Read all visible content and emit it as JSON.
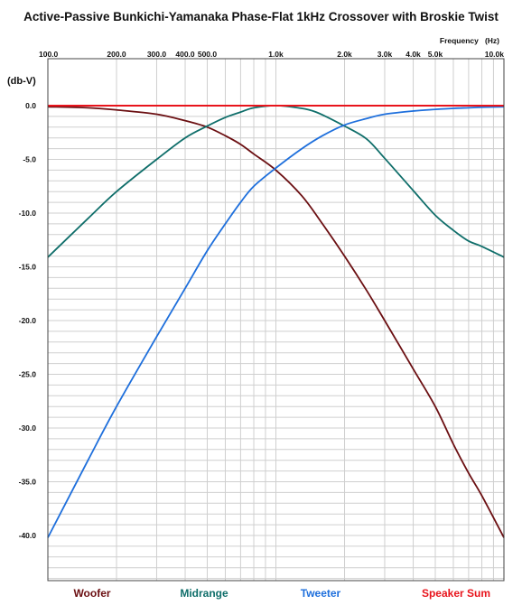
{
  "chart_data": {
    "type": "line",
    "title": "Active-Passive Bunkichi-Yamanaka Phase-Flat 1kHz Crossover with Broskie Twist",
    "xlabel": "Frequency   (Hz)",
    "ylabel": "(db-V)",
    "x_scale": "log",
    "xlim": [
      100,
      10000
    ],
    "ylim": [
      -44,
      2
    ],
    "grid": true,
    "legend_position": "bottom",
    "x_ticks": [
      {
        "value": 100,
        "label": "100.0"
      },
      {
        "value": 200,
        "label": "200.0"
      },
      {
        "value": 300,
        "label": "300.0"
      },
      {
        "value": 400,
        "label": "400.0"
      },
      {
        "value": 500,
        "label": "500.0"
      },
      {
        "value": 1000,
        "label": "1.0k"
      },
      {
        "value": 2000,
        "label": "2.0k"
      },
      {
        "value": 3000,
        "label": "3.0k"
      },
      {
        "value": 4000,
        "label": "4.0k"
      },
      {
        "value": 5000,
        "label": "5.0k"
      },
      {
        "value": 10000,
        "label": "10.0k"
      }
    ],
    "y_ticks": [
      {
        "value": 0,
        "label": "0.0"
      },
      {
        "value": -5,
        "label": "-5.0"
      },
      {
        "value": -10,
        "label": "-10.0"
      },
      {
        "value": -15,
        "label": "-15.0"
      },
      {
        "value": -20,
        "label": "-20.0"
      },
      {
        "value": -25,
        "label": "-25.0"
      },
      {
        "value": -30,
        "label": "-30.0"
      },
      {
        "value": -35,
        "label": "-35.0"
      },
      {
        "value": -40,
        "label": "-40.0"
      }
    ],
    "series": [
      {
        "name": "Woofer",
        "color": "#6b0f12",
        "x": [
          100,
          150,
          200,
          300,
          400,
          500,
          600,
          700,
          800,
          1000,
          1300,
          1600,
          2000,
          2500,
          3000,
          4000,
          5000,
          6000,
          7000,
          8000,
          10000
        ],
        "y": [
          -0.1,
          -0.2,
          -0.4,
          -0.8,
          -1.4,
          -2.0,
          -2.8,
          -3.6,
          -4.5,
          -6.0,
          -8.4,
          -11.0,
          -14.0,
          -17.2,
          -20.0,
          -24.5,
          -28.0,
          -31.5,
          -34.2,
          -36.3,
          -40.2
        ]
      },
      {
        "name": "Midrange",
        "color": "#0f6e6a",
        "x": [
          100,
          150,
          200,
          300,
          400,
          500,
          600,
          700,
          800,
          1000,
          1250,
          1500,
          2000,
          2500,
          3000,
          4000,
          5000,
          6000,
          7000,
          8000,
          10000
        ],
        "y": [
          -14.1,
          -10.5,
          -8.0,
          -5.0,
          -3.0,
          -1.9,
          -1.1,
          -0.6,
          -0.2,
          0.0,
          -0.2,
          -0.6,
          -1.9,
          -3.1,
          -4.9,
          -7.9,
          -10.2,
          -11.6,
          -12.6,
          -13.1,
          -14.1
        ]
      },
      {
        "name": "Tweeter",
        "color": "#1e6fdc",
        "x": [
          100,
          150,
          200,
          300,
          400,
          500,
          600,
          700,
          800,
          1000,
          1300,
          1600,
          2000,
          2500,
          3000,
          4000,
          5000,
          6000,
          7000,
          8000,
          10000
        ],
        "y": [
          -40.2,
          -33.0,
          -28.0,
          -21.5,
          -17.0,
          -13.5,
          -11.0,
          -9.0,
          -7.5,
          -5.8,
          -4.0,
          -2.8,
          -1.8,
          -1.2,
          -0.8,
          -0.5,
          -0.35,
          -0.25,
          -0.2,
          -0.15,
          -0.1
        ]
      },
      {
        "name": "Speaker Sum",
        "color": "#e8141c",
        "x": [
          100,
          10000
        ],
        "y": [
          0.0,
          0.0
        ]
      }
    ]
  }
}
